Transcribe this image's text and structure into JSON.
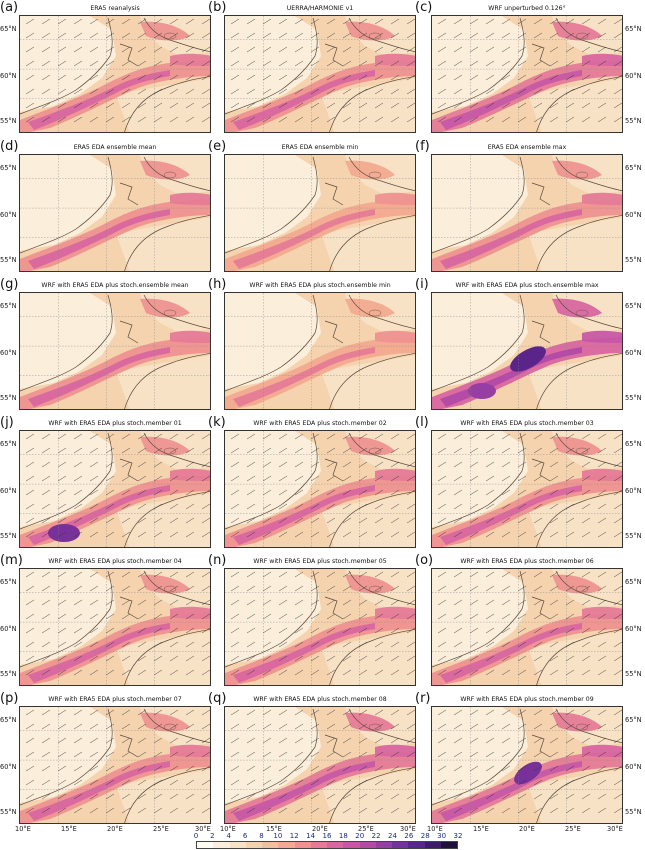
{
  "panels": [
    {
      "letter": "(a)",
      "title": "ERA5 reanalysis",
      "intensity": 1.0,
      "hot": 0
    },
    {
      "letter": "(b)",
      "title": "UERRA/HARMONIE v1",
      "intensity": 1.05,
      "hot": 0
    },
    {
      "letter": "(c)",
      "title": "WRF unperturbed 0.126°",
      "intensity": 1.1,
      "hot": 0
    },
    {
      "letter": "(d)",
      "title": "ERA5 EDA ensemble mean",
      "intensity": 0.95,
      "hot": 0
    },
    {
      "letter": "(e)",
      "title": "ERA5 EDA ensemble min",
      "intensity": 0.9,
      "hot": 0
    },
    {
      "letter": "(f)",
      "title": "ERA5 EDA ensemble max",
      "intensity": 1.0,
      "hot": 0
    },
    {
      "letter": "(g)",
      "title": "WRF with ERA5 EDA plus stoch.ensemble mean",
      "intensity": 1.0,
      "hot": 0
    },
    {
      "letter": "(h)",
      "title": "WRF with ERA5 EDA plus stoch.ensemble min",
      "intensity": 0.9,
      "hot": 0
    },
    {
      "letter": "(i)",
      "title": "WRF with ERA5 EDA plus stoch.ensemble max",
      "intensity": 1.25,
      "hot": 2
    },
    {
      "letter": "(j)",
      "title": "WRF with ERA5 EDA plus stoch.member 01",
      "intensity": 1.05,
      "hot": 1
    },
    {
      "letter": "(k)",
      "title": "WRF with ERA5 EDA plus stoch.member 02",
      "intensity": 1.05,
      "hot": 0
    },
    {
      "letter": "(l)",
      "title": "WRF with ERA5 EDA plus stoch.member 03",
      "intensity": 1.05,
      "hot": 0
    },
    {
      "letter": "(m)",
      "title": "WRF with ERA5 EDA plus stoch.member 04",
      "intensity": 1.05,
      "hot": 0
    },
    {
      "letter": "(n)",
      "title": "WRF with ERA5 EDA plus stoch.member 05",
      "intensity": 1.05,
      "hot": 0
    },
    {
      "letter": "(o)",
      "title": "WRF with ERA5 EDA plus stoch.member 06",
      "intensity": 1.05,
      "hot": 0
    },
    {
      "letter": "(p)",
      "title": "WRF with ERA5 EDA plus stoch.member 07",
      "intensity": 1.05,
      "hot": 0
    },
    {
      "letter": "(q)",
      "title": "WRF with ERA5 EDA plus stoch.member 08",
      "intensity": 1.1,
      "hot": 0
    },
    {
      "letter": "(r)",
      "title": "WRF with ERA5 EDA plus stoch.member 09",
      "intensity": 1.15,
      "hot": 3
    }
  ],
  "lat_labels": [
    "65°N",
    "60°N",
    "55°N"
  ],
  "lon_labels": [
    "10°E",
    "15°E",
    "20°E",
    "25°E",
    "30°E"
  ],
  "colorbar": {
    "ticks": [
      "0",
      "2",
      "4",
      "6",
      "8",
      "10",
      "12",
      "14",
      "16",
      "18",
      "20",
      "22",
      "24",
      "26",
      "28",
      "30",
      "32"
    ],
    "colors": [
      "#fffcf3",
      "#fbeedb",
      "#f7e2c6",
      "#f5d3ae",
      "#f3c09c",
      "#f2aa90",
      "#ee9290",
      "#e57b97",
      "#d866a0",
      "#c757a6",
      "#b14aa8",
      "#963ea3",
      "#78319a",
      "#5a248a",
      "#3d1a6e",
      "#1f0f3e"
    ]
  }
}
